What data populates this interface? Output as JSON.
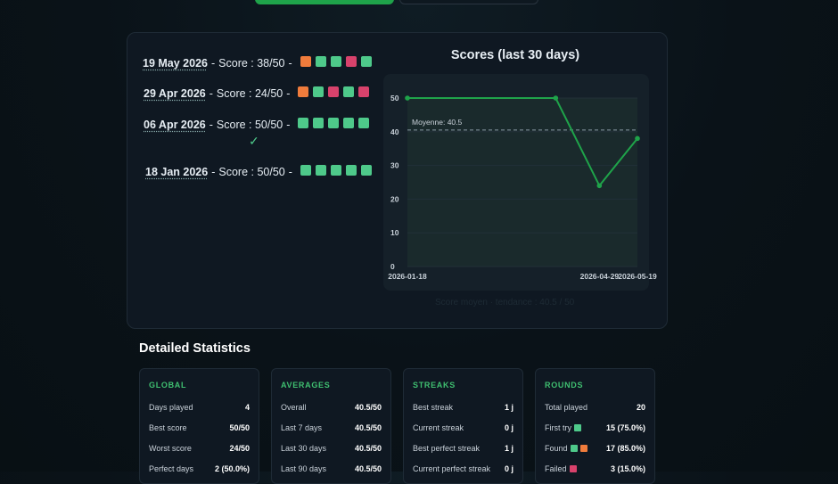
{
  "history": {
    "entries": [
      {
        "date": "19 May 2026",
        "score_text": "Score : 38/50",
        "squares": [
          "orange",
          "green",
          "green",
          "pink",
          "green"
        ]
      },
      {
        "date": "29 Apr 2026",
        "score_text": "Score : 24/50",
        "squares": [
          "orange",
          "green",
          "pink",
          "green",
          "pink"
        ]
      },
      {
        "date": "06 Apr 2026",
        "score_text": "Score : 50/50",
        "squares": [
          "green",
          "green",
          "green",
          "green",
          "green"
        ],
        "check": "✓"
      },
      {
        "date": "18 Jan 2026",
        "score_text": "Score : 50/50",
        "squares": [
          "green",
          "green",
          "green",
          "green",
          "green"
        ]
      }
    ],
    "separator": "-"
  },
  "chart": {
    "title": "Scores (last 30 days)",
    "footnote": "Score moyen · tendance : 40.5 / 50"
  },
  "chart_data": {
    "type": "line",
    "title": "Scores (last 30 days)",
    "x": [
      "2026-01-18",
      "2026-04-06",
      "2026-04-29",
      "2026-05-19"
    ],
    "x_tick_labels": [
      "2026-01-18",
      "2026-04-29",
      "2026-05-19"
    ],
    "series": [
      {
        "values": [
          50,
          50,
          24,
          38
        ],
        "color": "#1fa34a"
      }
    ],
    "average": {
      "label": "Moyenne: 40.5",
      "value": 40.5
    },
    "ylim": [
      0,
      50
    ],
    "yticks": [
      0,
      10,
      20,
      30,
      40,
      50
    ],
    "grid": true
  },
  "stats": {
    "title": "Detailed Statistics",
    "cards": [
      {
        "heading": "GLOBAL",
        "rows": [
          {
            "label": "Days played",
            "value": "4"
          },
          {
            "label": "Best score",
            "value": "50/50"
          },
          {
            "label": "Worst score",
            "value": "24/50"
          },
          {
            "label": "Perfect days",
            "value": "2 (50.0%)"
          }
        ]
      },
      {
        "heading": "AVERAGES",
        "rows": [
          {
            "label": "Overall",
            "value": "40.5/50"
          },
          {
            "label": "Last 7 days",
            "value": "40.5/50"
          },
          {
            "label": "Last 30 days",
            "value": "40.5/50"
          },
          {
            "label": "Last 90 days",
            "value": "40.5/50"
          }
        ]
      },
      {
        "heading": "STREAKS",
        "rows": [
          {
            "label": "Best streak",
            "value": "1 j"
          },
          {
            "label": "Current streak",
            "value": "0 j"
          },
          {
            "label": "Best perfect streak",
            "value": "1 j"
          },
          {
            "label": "Current perfect streak",
            "value": "0 j"
          }
        ]
      },
      {
        "heading": "ROUNDS",
        "rows": [
          {
            "label": "Total played",
            "value": "20"
          },
          {
            "label": "First try",
            "value": "15 (75.0%)",
            "squares": [
              "green"
            ]
          },
          {
            "label": "Found",
            "value": "17 (85.0%)",
            "squares": [
              "green",
              "orange"
            ]
          },
          {
            "label": "Failed",
            "value": "3 (15.0%)",
            "squares": [
              "pink"
            ]
          }
        ]
      }
    ]
  },
  "colors": {
    "green": "#4ec98a",
    "orange": "#f07c3c",
    "pink": "#d8426c",
    "accent": "#1fa34a"
  }
}
